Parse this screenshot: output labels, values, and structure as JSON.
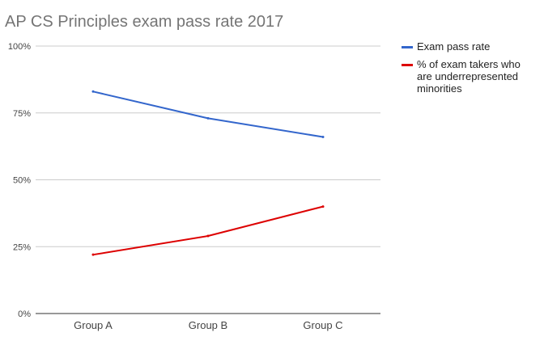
{
  "chart_data": {
    "type": "line",
    "title": "AP CS Principles exam pass rate 2017",
    "xlabel": "",
    "ylabel": "",
    "categories": [
      "Group A",
      "Group B",
      "Group C"
    ],
    "ylim": [
      0,
      100
    ],
    "yticks": [
      0,
      25,
      50,
      75,
      100
    ],
    "ytick_labels": [
      "0%",
      "25%",
      "50%",
      "75%",
      "100%"
    ],
    "grid": true,
    "legend_position": "right",
    "series": [
      {
        "name": "Exam pass rate",
        "color": "#3366cc",
        "values": [
          83,
          73,
          66
        ]
      },
      {
        "name": "% of exam takers who are underrepresented minorities",
        "color": "#dd0000",
        "values": [
          22,
          29,
          40
        ]
      }
    ]
  },
  "legend": {
    "items": [
      {
        "lines": [
          "Exam pass rate"
        ]
      },
      {
        "lines": [
          "% of exam takers who",
          "are underrepresented",
          "minorities"
        ]
      }
    ]
  }
}
